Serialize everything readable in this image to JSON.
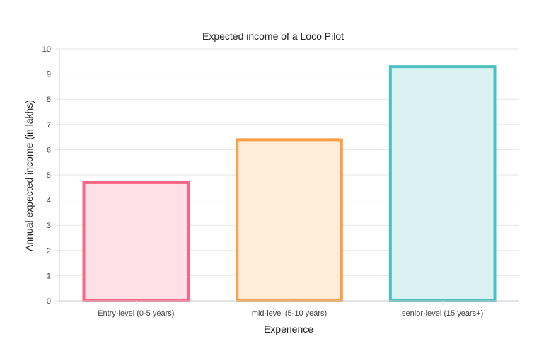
{
  "chart_data": {
    "type": "bar",
    "title": "Expected income of a Loco Pilot",
    "xlabel": "Experience",
    "ylabel": "Annual expected income (in lakhs)",
    "categories": [
      "Entry-level (0-5 years)",
      "mid-level (5-10 years)",
      "senior-level (15 years+)"
    ],
    "values": [
      4.75,
      6.45,
      9.35
    ],
    "ylim": [
      0,
      10
    ],
    "yticks": [
      0,
      1,
      2,
      3,
      4,
      5,
      6,
      7,
      8,
      9,
      10
    ],
    "grid": true,
    "legend": "none",
    "colors": {
      "border": [
        "#ff6384",
        "#ff9f40",
        "#4bc0c0"
      ],
      "fill": [
        "#ffe0e6",
        "#ffecd9",
        "#dbf2f2"
      ]
    }
  }
}
